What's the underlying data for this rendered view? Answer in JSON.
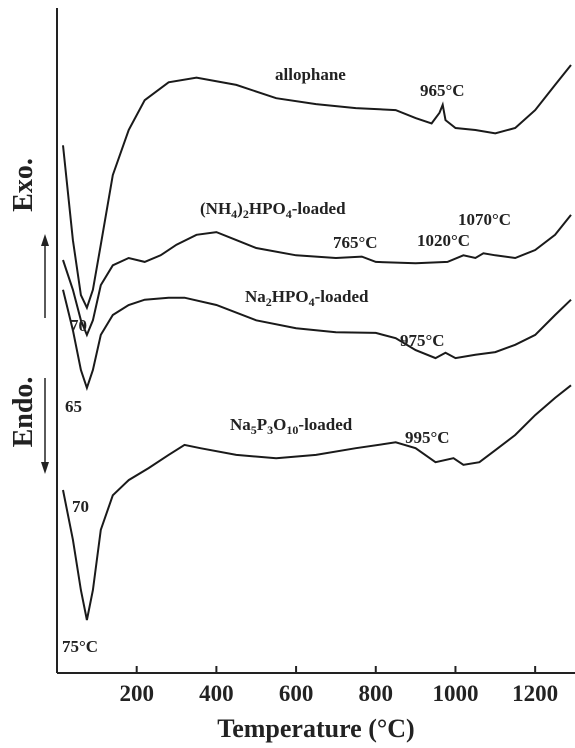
{
  "chart_data": {
    "type": "line",
    "x_label": "Temperature (°C)",
    "xlim": [
      0,
      1300
    ],
    "xticks": [
      200,
      400,
      600,
      800,
      1000,
      1200
    ],
    "ylim": [
      0,
      100
    ],
    "color": "#1a1a1a",
    "series": [
      {
        "name": "allophane",
        "x": [
          15,
          40,
          60,
          75,
          90,
          110,
          140,
          180,
          220,
          280,
          350,
          450,
          550,
          650,
          750,
          850,
          900,
          940,
          960,
          968,
          975,
          1000,
          1050,
          1100,
          1150,
          1200,
          1250,
          1290
        ],
        "values": [
          79.6,
          65.3,
          57.0,
          55.1,
          57.8,
          64.6,
          75.1,
          81.9,
          86.4,
          89.1,
          89.8,
          88.7,
          86.7,
          85.8,
          85.2,
          84.9,
          83.7,
          82.9,
          84.5,
          85.7,
          83.4,
          82.2,
          81.9,
          81.4,
          82.2,
          84.9,
          88.7,
          91.7
        ]
      },
      {
        "name": "(NH4)2HPO4-loaded",
        "x": [
          15,
          40,
          60,
          75,
          90,
          110,
          140,
          180,
          220,
          260,
          300,
          350,
          400,
          450,
          500,
          600,
          700,
          765,
          800,
          900,
          980,
          1020,
          1050,
          1070,
          1100,
          1150,
          1200,
          1250,
          1290
        ],
        "values": [
          62.3,
          57.8,
          53.2,
          51.0,
          53.2,
          58.5,
          61.5,
          62.6,
          62.0,
          63.0,
          64.6,
          66.1,
          66.5,
          65.3,
          64.1,
          63.0,
          62.6,
          62.8,
          62.0,
          61.8,
          62.0,
          63.0,
          62.6,
          63.3,
          63.0,
          62.6,
          63.8,
          66.1,
          69.1
        ]
      },
      {
        "name": "Na2HPO4-loaded",
        "x": [
          15,
          40,
          60,
          75,
          90,
          110,
          140,
          180,
          220,
          280,
          320,
          400,
          500,
          600,
          700,
          800,
          850,
          900,
          950,
          975,
          1000,
          1050,
          1100,
          1150,
          1200,
          1250,
          1290
        ],
        "values": [
          57.8,
          51.7,
          45.7,
          43.0,
          45.7,
          51.0,
          54.0,
          55.5,
          56.3,
          56.6,
          56.6,
          55.5,
          53.2,
          52.0,
          51.4,
          51.3,
          50.5,
          48.7,
          47.5,
          48.3,
          47.5,
          48.0,
          48.4,
          49.5,
          51.0,
          54.0,
          56.3
        ]
      },
      {
        "name": "Na5P3O10-loaded",
        "x": [
          15,
          40,
          60,
          75,
          90,
          110,
          140,
          180,
          230,
          280,
          320,
          360,
          450,
          550,
          650,
          750,
          850,
          900,
          950,
          995,
          1020,
          1060,
          1100,
          1150,
          1200,
          1250,
          1290
        ],
        "values": [
          27.6,
          20.1,
          12.5,
          8.0,
          12.5,
          21.6,
          26.8,
          29.1,
          30.9,
          32.9,
          34.4,
          33.9,
          32.9,
          32.4,
          32.9,
          33.9,
          34.8,
          33.9,
          31.8,
          32.4,
          31.4,
          31.8,
          33.6,
          35.9,
          38.9,
          41.5,
          43.4
        ]
      }
    ],
    "annotations": [
      "965°C",
      "765°C",
      "1020°C",
      "1070°C",
      "975°C",
      "995°C",
      "70",
      "65",
      "70",
      "75°C"
    ],
    "side_labels": [
      "Exo.",
      "Endo."
    ]
  }
}
